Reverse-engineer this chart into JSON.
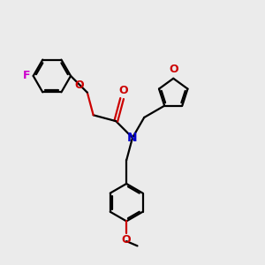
{
  "bg_color": "#ebebeb",
  "bond_color": "#000000",
  "N_color": "#0000cc",
  "O_color": "#cc0000",
  "F_color": "#cc00cc",
  "lw": 1.6,
  "fig_w": 3.0,
  "fig_h": 3.0,
  "dpi": 100,
  "xlim": [
    0,
    10
  ],
  "ylim": [
    0,
    10
  ]
}
